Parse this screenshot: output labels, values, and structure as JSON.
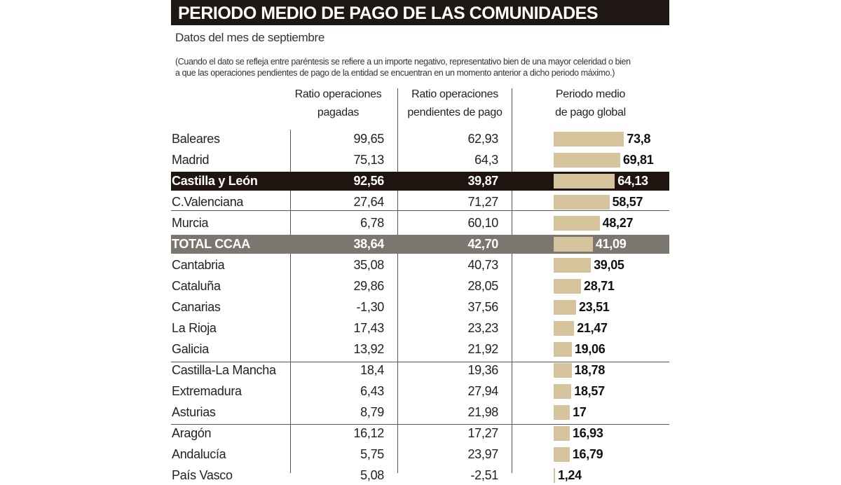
{
  "header": {
    "title": "PERIODO MEDIO DE PAGO DE LAS COMUNIDADES",
    "subtitle": "Datos del mes de septiembre",
    "note_line1": "(Cuando el dato se refleja entre paréntesis se refiere a un importe negativo, representativo bien de una  mayor celeridad o bien",
    "note_line2": "a que las operaciones pendientes de pago de la entidad se encuentran en un momento anterior a dicho periodo máximo.)"
  },
  "colors": {
    "bar": "#d4c39b",
    "highlight_dark": "#1f1410",
    "highlight_total": "#7b7670"
  },
  "chart_data": {
    "type": "table",
    "columns": [
      {
        "line1": "Ratio operaciones",
        "line2": "pagadas"
      },
      {
        "line1": "Ratio operaciones",
        "line2": "pendientes de pago"
      },
      {
        "line1": "Periodo medio",
        "line2": "de pago global"
      }
    ],
    "rows": [
      {
        "name": "Baleares",
        "pagadas": "99,65",
        "pendientes": "62,93",
        "global": "73,8",
        "value": 73.8
      },
      {
        "name": "Madrid",
        "pagadas": "75,13",
        "pendientes": "64,3",
        "global": "69,81",
        "value": 69.81
      },
      {
        "name": "Castilla y León",
        "pagadas": "92,56",
        "pendientes": "39,87",
        "global": "64,13",
        "value": 64.13,
        "highlight": "dark"
      },
      {
        "name": "C.Valenciana",
        "pagadas": "27,64",
        "pendientes": "71,27",
        "global": "58,57",
        "value": 58.57
      },
      {
        "name": "Murcia",
        "pagadas": "6,78",
        "pendientes": "60,10",
        "global": "48,27",
        "value": 48.27
      },
      {
        "name": "TOTAL CCAA",
        "pagadas": "38,64",
        "pendientes": "42,70",
        "global": "41,09",
        "value": 41.09,
        "highlight": "grey"
      },
      {
        "name": "Cantabria",
        "pagadas": "35,08",
        "pendientes": "40,73",
        "global": "39,05",
        "value": 39.05
      },
      {
        "name": "Cataluña",
        "pagadas": "29,86",
        "pendientes": "28,05",
        "global": "28,71",
        "value": 28.71
      },
      {
        "name": "Canarias",
        "pagadas": "-1,30",
        "pendientes": "37,56",
        "global": "23,51",
        "value": 23.51
      },
      {
        "name": "La Rioja",
        "pagadas": "17,43",
        "pendientes": "23,23",
        "global": "21,47",
        "value": 21.47
      },
      {
        "name": "Galicia",
        "pagadas": "13,92",
        "pendientes": "21,92",
        "global": "19,06",
        "value": 19.06
      },
      {
        "name": "Castilla-La Mancha",
        "pagadas": "18,4",
        "pendientes": "19,36",
        "global": "18,78",
        "value": 18.78
      },
      {
        "name": "Extremadura",
        "pagadas": "6,43",
        "pendientes": "27,94",
        "global": "18,57",
        "value": 18.57
      },
      {
        "name": "Asturias",
        "pagadas": "8,79",
        "pendientes": "21,98",
        "global": "17",
        "value": 17
      },
      {
        "name": "Aragón",
        "pagadas": "16,12",
        "pendientes": "17,27",
        "global": "16,93",
        "value": 16.93
      },
      {
        "name": "Andalucía",
        "pagadas": "5,75",
        "pendientes": "23,97",
        "global": "16,79",
        "value": 16.79
      },
      {
        "name": "País Vasco",
        "pagadas": "5,08",
        "pendientes": "-2,51",
        "global": "1,24",
        "value": 1.24
      }
    ]
  }
}
